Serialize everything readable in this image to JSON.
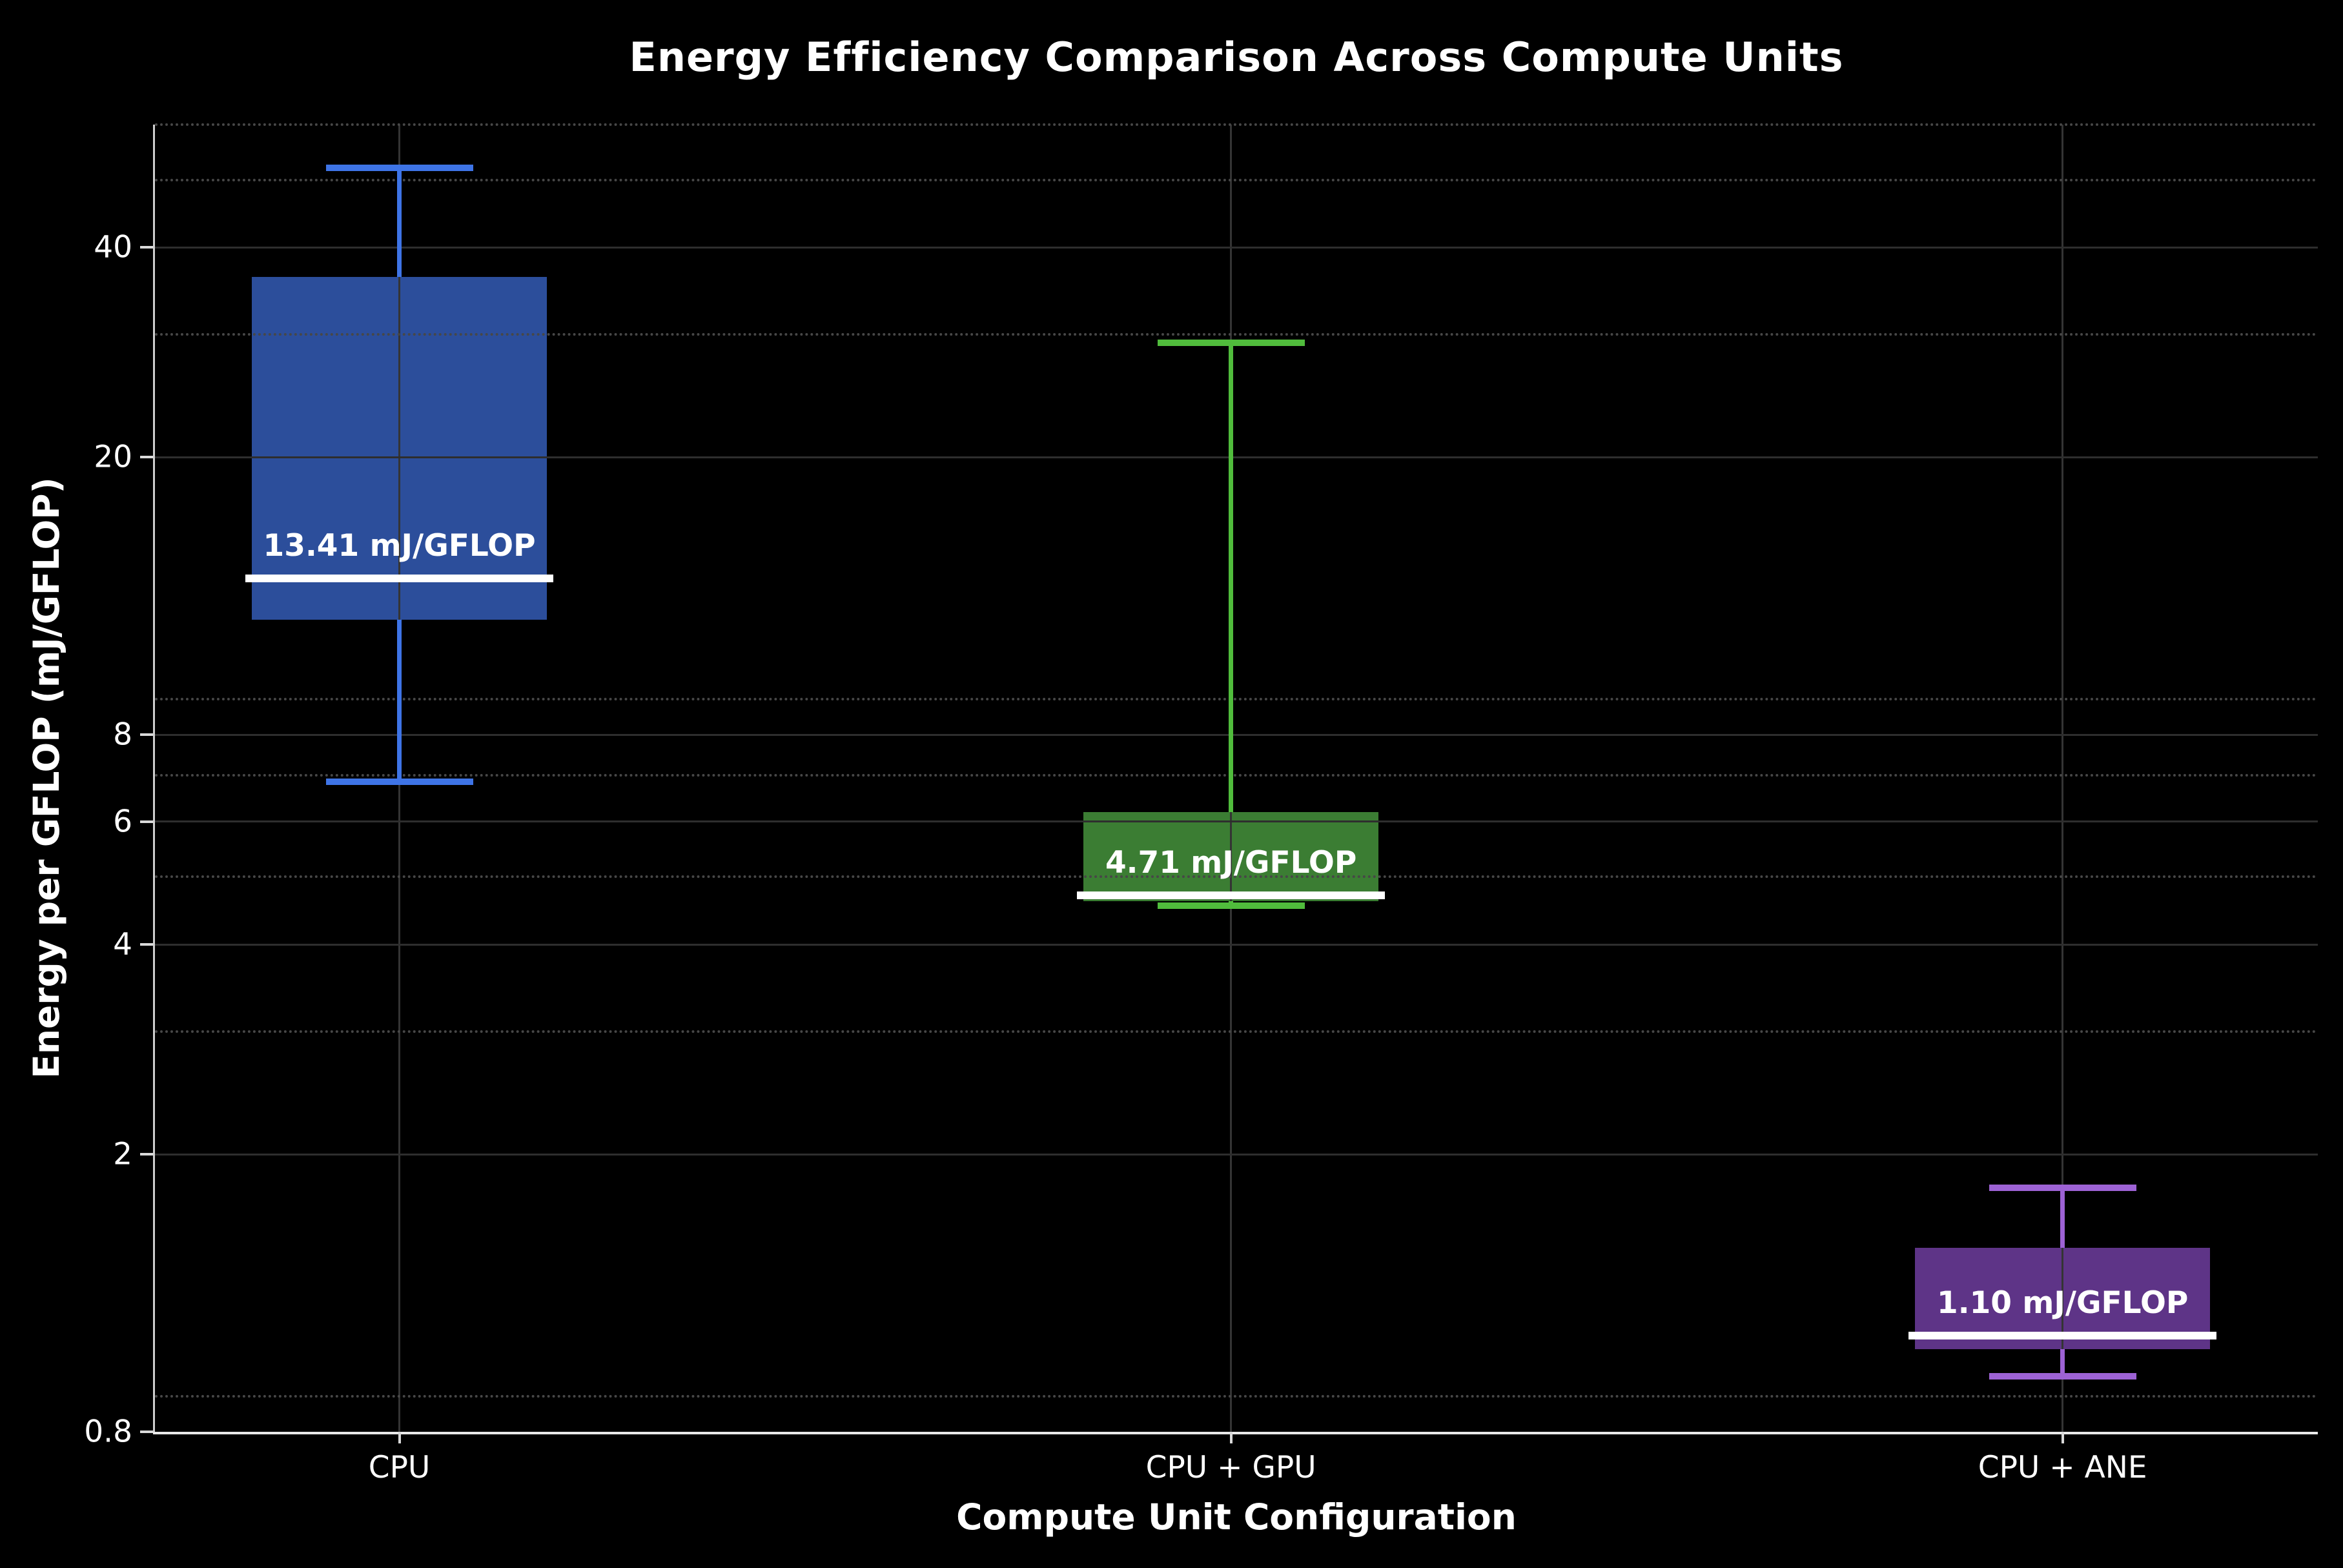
{
  "title": "Energy Efficiency Comparison Across Compute Units",
  "x_axis": {
    "label": "Compute Unit Configuration",
    "categories": [
      "CPU",
      "CPU + GPU",
      "CPU + ANE"
    ]
  },
  "y_axis": {
    "label": "Energy per GFLOP (mJ/GFLOP)",
    "scale": "log",
    "range": [
      0.8,
      60
    ],
    "ticks": [
      {
        "value": 40,
        "label": "40"
      },
      {
        "value": 20,
        "label": "20"
      },
      {
        "value": 8,
        "label": "8"
      },
      {
        "value": 6,
        "label": "6"
      },
      {
        "value": 4,
        "label": "4"
      },
      {
        "value": 2,
        "label": "2"
      },
      {
        "value": 0.8,
        "label": "0.8"
      }
    ],
    "minor_gridlines": [
      0.9,
      3,
      5,
      7,
      9,
      30,
      50,
      60
    ],
    "major_gridlines": [
      2,
      4,
      6,
      8,
      20,
      40
    ]
  },
  "chart_data": {
    "type": "boxplot",
    "title": "Energy Efficiency Comparison Across Compute Units",
    "xlabel": "Compute Unit Configuration",
    "ylabel": "Energy per GFLOP (mJ/GFLOP)",
    "yscale": "log",
    "ylim": [
      0.8,
      60
    ],
    "grid": "both",
    "categories": [
      "CPU",
      "CPU + GPU",
      "CPU + ANE"
    ],
    "series": [
      {
        "name": "CPU",
        "whisker_low": 6.85,
        "q1": 11.7,
        "median": 13.41,
        "q3": 36.3,
        "whisker_high": 52,
        "median_label": "13.41 mJ/GFLOP",
        "box_color": "#2c4e9b",
        "line_color": "#3e74e6"
      },
      {
        "name": "CPU + GPU",
        "whisker_low": 4.55,
        "q1": 4.62,
        "median": 4.71,
        "q3": 6.2,
        "whisker_high": 29.2,
        "median_label": "4.71 mJ/GFLOP",
        "box_color": "#3b7d33",
        "line_color": "#50bc3c"
      },
      {
        "name": "CPU + ANE",
        "whisker_low": 0.96,
        "q1": 1.05,
        "median": 1.1,
        "q3": 1.47,
        "whisker_high": 1.79,
        "median_label": "1.10 mJ/GFLOP",
        "box_color": "#5e3487",
        "line_color": "#9d62d4"
      }
    ]
  },
  "colors": {
    "background": "#000000",
    "text": "#ffffff",
    "major_grid": "#2e2e2e",
    "minor_grid": "#474747",
    "vertical_grid": "#343434",
    "spine": "#d9d9d9",
    "median": "#ffffff"
  }
}
